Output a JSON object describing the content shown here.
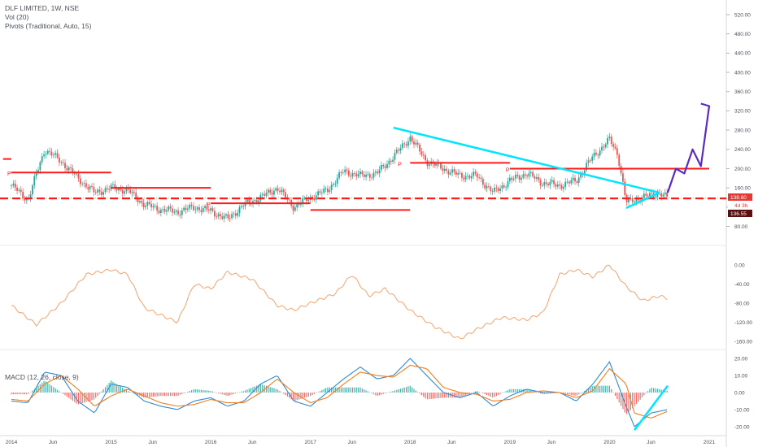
{
  "header": {
    "title": "DLF LIMITED, 1W, NSE",
    "volume_indicator": "Vol (20)",
    "pivots_indicator": "Pivots (Traditional, Auto, 15)"
  },
  "macd_panel": {
    "label": "MACD (12, 26, close, 9)"
  },
  "colors": {
    "up": "#26a69a",
    "down": "#ef5350",
    "pivot": "#ff1a1a",
    "trendline": "#00e5ff",
    "drawing": "#5b2bc0",
    "volume_line": "#f5a26b",
    "macd": "#2e8bd6",
    "signal": "#f57c1a",
    "tag_price": "#e53935",
    "tag_dark": "#5c0f0f"
  },
  "price_tags": {
    "last": "138.60",
    "mid": "4d 3h",
    "low": "136.55"
  },
  "time_labels": [
    "2014",
    "Jun",
    "2015",
    "Jun",
    "2016",
    "Jun",
    "2017",
    "Jun",
    "2018",
    "Jun",
    "2019",
    "Jun",
    "2020",
    "Jun",
    "2021"
  ],
  "pivot_labels": [
    "P",
    "P",
    "P",
    "P"
  ],
  "chart_data": [
    {
      "type": "candlestick",
      "title": "DLF LIMITED, 1W, NSE",
      "x": [
        "2014",
        "Jun",
        "2015",
        "Jun",
        "2016",
        "Jun",
        "2017",
        "Jun",
        "2018",
        "Jun",
        "2019",
        "Jun",
        "2020",
        "Jun",
        "2021"
      ],
      "y_axis_ticks": [
        520,
        480,
        440,
        400,
        360,
        320,
        280,
        240,
        200,
        160,
        120,
        80
      ],
      "ylim": [
        60,
        540
      ],
      "close_path": [
        [
          "2014-01",
          165
        ],
        [
          "2014-03",
          135
        ],
        [
          "2014-05",
          240
        ],
        [
          "2014-07",
          215
        ],
        [
          "2014-09",
          180
        ],
        [
          "2014-11",
          150
        ],
        [
          "2015-01",
          160
        ],
        [
          "2015-03",
          155
        ],
        [
          "2015-05",
          125
        ],
        [
          "2015-07",
          115
        ],
        [
          "2015-09",
          110
        ],
        [
          "2015-11",
          120
        ],
        [
          "2016-01",
          112
        ],
        [
          "2016-03",
          95
        ],
        [
          "2016-05",
          125
        ],
        [
          "2016-07",
          140
        ],
        [
          "2016-09",
          160
        ],
        [
          "2016-11",
          120
        ],
        [
          "2017-01",
          140
        ],
        [
          "2017-03",
          155
        ],
        [
          "2017-05",
          195
        ],
        [
          "2017-07",
          185
        ],
        [
          "2017-09",
          190
        ],
        [
          "2017-11",
          225
        ],
        [
          "2018-01",
          265
        ],
        [
          "2018-03",
          215
        ],
        [
          "2018-05",
          200
        ],
        [
          "2018-07",
          185
        ],
        [
          "2018-09",
          185
        ],
        [
          "2018-11",
          150
        ],
        [
          "2019-01",
          175
        ],
        [
          "2019-03",
          190
        ],
        [
          "2019-05",
          170
        ],
        [
          "2019-07",
          165
        ],
        [
          "2019-09",
          175
        ],
        [
          "2019-11",
          225
        ],
        [
          "2020-01",
          260
        ],
        [
          "2020-02",
          230
        ],
        [
          "2020-03",
          130
        ],
        [
          "2020-05",
          140
        ],
        [
          "2020-07",
          150
        ],
        [
          "2020-08",
          138
        ]
      ],
      "pivot_levels": [
        {
          "from": "2014-01",
          "to": "2015-01",
          "value": 192
        },
        {
          "from": "2015-01",
          "to": "2016-01",
          "value": 160
        },
        {
          "from": "2016-01",
          "to": "2017-01",
          "value": 128
        },
        {
          "from": "2017-01",
          "to": "2018-01",
          "value": 114
        },
        {
          "from": "2018-01",
          "to": "2019-01",
          "value": 212
        },
        {
          "from": "2019-01",
          "to": "2021-01",
          "value": 200
        },
        {
          "from": "2013-12",
          "to": "2014-01",
          "value": 220
        }
      ],
      "support_level": 138,
      "last_price": 138.6,
      "low_tag": 136.55
    },
    {
      "type": "line",
      "title": "Vol (20)",
      "y_axis_ticks": [
        0.0,
        -40.0,
        -80.0,
        -120.0,
        -160.0
      ],
      "ylim": [
        -165,
        10
      ],
      "values": [
        [
          "2014-01",
          -85
        ],
        [
          "2014-04",
          -125
        ],
        [
          "2014-07",
          -80
        ],
        [
          "2014-10",
          -20
        ],
        [
          "2015-01",
          -10
        ],
        [
          "2015-03",
          -20
        ],
        [
          "2015-05",
          -90
        ],
        [
          "2015-07",
          -105
        ],
        [
          "2015-09",
          -120
        ],
        [
          "2015-11",
          -40
        ],
        [
          "2016-01",
          -50
        ],
        [
          "2016-03",
          -15
        ],
        [
          "2016-06",
          -30
        ],
        [
          "2016-09",
          -85
        ],
        [
          "2016-11",
          -95
        ],
        [
          "2017-01",
          -80
        ],
        [
          "2017-04",
          -60
        ],
        [
          "2017-06",
          -20
        ],
        [
          "2017-08",
          -65
        ],
        [
          "2017-10",
          -50
        ],
        [
          "2018-01",
          -95
        ],
        [
          "2018-04",
          -130
        ],
        [
          "2018-07",
          -155
        ],
        [
          "2018-09",
          -135
        ],
        [
          "2018-12",
          -110
        ],
        [
          "2019-03",
          -115
        ],
        [
          "2019-05",
          -100
        ],
        [
          "2019-07",
          -20
        ],
        [
          "2019-09",
          -10
        ],
        [
          "2019-11",
          -25
        ],
        [
          "2020-01",
          0
        ],
        [
          "2020-03",
          -45
        ],
        [
          "2020-05",
          -75
        ],
        [
          "2020-07",
          -65
        ],
        [
          "2020-08",
          -70
        ]
      ]
    },
    {
      "type": "line",
      "title": "MACD (12, 26, close, 9)",
      "y_axis_ticks": [
        20.0,
        10.0,
        0.0,
        -10.0,
        -20.0
      ],
      "ylim": [
        -24,
        24
      ],
      "macd": [
        [
          "2014-01",
          -5
        ],
        [
          "2014-03",
          -6
        ],
        [
          "2014-05",
          12
        ],
        [
          "2014-07",
          10
        ],
        [
          "2014-09",
          -5
        ],
        [
          "2014-11",
          -12
        ],
        [
          "2015-01",
          5
        ],
        [
          "2015-03",
          3
        ],
        [
          "2015-05",
          -5
        ],
        [
          "2015-07",
          -8
        ],
        [
          "2015-09",
          -10
        ],
        [
          "2015-11",
          -5
        ],
        [
          "2016-01",
          -3
        ],
        [
          "2016-03",
          -8
        ],
        [
          "2016-05",
          -5
        ],
        [
          "2016-07",
          5
        ],
        [
          "2016-09",
          10
        ],
        [
          "2016-11",
          -5
        ],
        [
          "2017-01",
          -8
        ],
        [
          "2017-03",
          0
        ],
        [
          "2017-05",
          8
        ],
        [
          "2017-07",
          15
        ],
        [
          "2017-09",
          8
        ],
        [
          "2017-11",
          10
        ],
        [
          "2018-01",
          20
        ],
        [
          "2018-03",
          10
        ],
        [
          "2018-05",
          0
        ],
        [
          "2018-07",
          -3
        ],
        [
          "2018-09",
          0
        ],
        [
          "2018-11",
          -8
        ],
        [
          "2019-01",
          -2
        ],
        [
          "2019-03",
          2
        ],
        [
          "2019-05",
          0
        ],
        [
          "2019-07",
          0
        ],
        [
          "2019-09",
          -5
        ],
        [
          "2019-11",
          5
        ],
        [
          "2020-01",
          18
        ],
        [
          "2020-03",
          -8
        ],
        [
          "2020-04",
          -20
        ],
        [
          "2020-06",
          -12
        ],
        [
          "2020-08",
          -10
        ]
      ],
      "signal": [
        [
          "2014-01",
          -4
        ],
        [
          "2014-03",
          -5
        ],
        [
          "2014-05",
          5
        ],
        [
          "2014-07",
          10
        ],
        [
          "2014-09",
          2
        ],
        [
          "2014-11",
          -8
        ],
        [
          "2015-01",
          -2
        ],
        [
          "2015-03",
          2
        ],
        [
          "2015-05",
          -2
        ],
        [
          "2015-07",
          -6
        ],
        [
          "2015-09",
          -8
        ],
        [
          "2015-11",
          -7
        ],
        [
          "2016-01",
          -4
        ],
        [
          "2016-03",
          -6
        ],
        [
          "2016-05",
          -6
        ],
        [
          "2016-07",
          0
        ],
        [
          "2016-09",
          8
        ],
        [
          "2016-11",
          0
        ],
        [
          "2017-01",
          -6
        ],
        [
          "2017-03",
          -3
        ],
        [
          "2017-05",
          5
        ],
        [
          "2017-07",
          12
        ],
        [
          "2017-09",
          10
        ],
        [
          "2017-11",
          9
        ],
        [
          "2018-01",
          16
        ],
        [
          "2018-03",
          14
        ],
        [
          "2018-05",
          3
        ],
        [
          "2018-07",
          0
        ],
        [
          "2018-09",
          -1
        ],
        [
          "2018-11",
          -5
        ],
        [
          "2019-01",
          -4
        ],
        [
          "2019-03",
          0
        ],
        [
          "2019-05",
          1
        ],
        [
          "2019-07",
          0
        ],
        [
          "2019-09",
          -3
        ],
        [
          "2019-11",
          1
        ],
        [
          "2020-01",
          14
        ],
        [
          "2020-03",
          5
        ],
        [
          "2020-04",
          -12
        ],
        [
          "2020-06",
          -15
        ],
        [
          "2020-08",
          -11
        ]
      ]
    }
  ]
}
